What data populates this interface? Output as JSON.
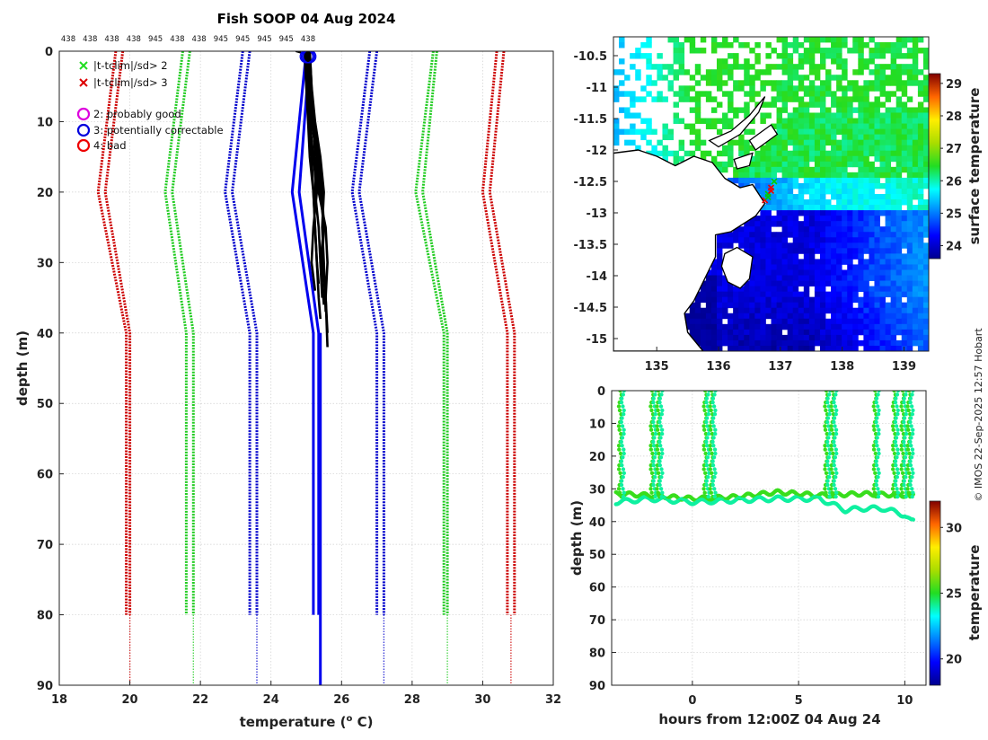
{
  "credit": "© IMOS 22-Sep-2025 12:57 Hobart",
  "chart_data": [
    {
      "type": "line",
      "name": "profile",
      "title": "Fish SOOP 04 Aug 2024",
      "xlabel": "temperature (",
      "xlabel_sup": "o",
      "xlabel_end": " C)",
      "ylabel": "depth (m)",
      "xlim": [
        18,
        32
      ],
      "ylim": [
        0,
        90
      ],
      "xticks": [
        "18",
        "20",
        "22",
        "24",
        "26",
        "28",
        "30",
        "32"
      ],
      "yticks": [
        "0",
        "10",
        "20",
        "30",
        "40",
        "50",
        "60",
        "70",
        "80",
        "90"
      ],
      "sensor_ids": [
        "438",
        "438",
        "438",
        "438",
        "945",
        "438",
        "438",
        "945",
        "945",
        "945",
        "945",
        "438"
      ],
      "legend": [
        {
          "marker": "x",
          "color": "#22dd22",
          "label": "|t-tclim|/sd> 2"
        },
        {
          "marker": "x",
          "color": "#dd0000",
          "label": "|t-tclim|/sd> 3"
        },
        {
          "marker": "o",
          "color": "#dd00dd",
          "label": "2: probably good"
        },
        {
          "marker": "o",
          "color": "#0000dd",
          "label": "3: potentially correctable"
        },
        {
          "marker": "o",
          "color": "#ee0000",
          "label": "4: bad"
        }
      ],
      "climatology": [
        {
          "color": "#cc0000",
          "depth": [
            0,
            20,
            40,
            80
          ],
          "temp": [
            19.6,
            19.1,
            19.9,
            19.9
          ]
        },
        {
          "color": "#cc0000",
          "depth": [
            0,
            20,
            40,
            80
          ],
          "temp": [
            19.8,
            19.3,
            20.0,
            20.0
          ]
        },
        {
          "color": "#cc0000",
          "depth": [
            80,
            90
          ],
          "temp": [
            20.0,
            20.0
          ]
        },
        {
          "color": "#22cc22",
          "depth": [
            0,
            20,
            40,
            80
          ],
          "temp": [
            21.5,
            21.0,
            21.6,
            21.6
          ]
        },
        {
          "color": "#22cc22",
          "depth": [
            0,
            20,
            40,
            80
          ],
          "temp": [
            21.7,
            21.2,
            21.8,
            21.8
          ]
        },
        {
          "color": "#22cc22",
          "depth": [
            80,
            90
          ],
          "temp": [
            21.8,
            21.8
          ]
        },
        {
          "color": "#0000cc",
          "depth": [
            0,
            20,
            40,
            80
          ],
          "temp": [
            23.2,
            22.7,
            23.4,
            23.4
          ]
        },
        {
          "color": "#0000cc",
          "depth": [
            0,
            20,
            40,
            80
          ],
          "temp": [
            23.4,
            22.9,
            23.6,
            23.6
          ]
        },
        {
          "color": "#0000cc",
          "depth": [
            80,
            90
          ],
          "temp": [
            23.6,
            23.6
          ]
        },
        {
          "color": "#0000cc",
          "depth": [
            0,
            20,
            40,
            80
          ],
          "temp": [
            26.8,
            26.3,
            27.0,
            27.0
          ]
        },
        {
          "color": "#0000cc",
          "depth": [
            0,
            20,
            40,
            80
          ],
          "temp": [
            27.0,
            26.5,
            27.2,
            27.2
          ]
        },
        {
          "color": "#0000cc",
          "depth": [
            80,
            90
          ],
          "temp": [
            27.2,
            27.2
          ]
        },
        {
          "color": "#22cc22",
          "depth": [
            0,
            20,
            40,
            80
          ],
          "temp": [
            28.6,
            28.1,
            28.9,
            28.9
          ]
        },
        {
          "color": "#22cc22",
          "depth": [
            0,
            20,
            40,
            80
          ],
          "temp": [
            28.7,
            28.3,
            29.0,
            29.0
          ]
        },
        {
          "color": "#22cc22",
          "depth": [
            80,
            90
          ],
          "temp": [
            29.0,
            29.0
          ]
        },
        {
          "color": "#cc0000",
          "depth": [
            0,
            20,
            40,
            80
          ],
          "temp": [
            30.4,
            30.0,
            30.7,
            30.7
          ]
        },
        {
          "color": "#cc0000",
          "depth": [
            0,
            20,
            40,
            80
          ],
          "temp": [
            30.6,
            30.2,
            30.9,
            30.9
          ]
        },
        {
          "color": "#cc0000",
          "depth": [
            80,
            90
          ],
          "temp": [
            30.8,
            30.8
          ]
        }
      ],
      "mean_profile": [
        {
          "color": "#0000ee",
          "depth": [
            0,
            20,
            40,
            80
          ],
          "temp": [
            25.0,
            24.6,
            25.2,
            25.2
          ]
        },
        {
          "color": "#0000ee",
          "depth": [
            0,
            20,
            40,
            80
          ],
          "temp": [
            25.1,
            24.8,
            25.35,
            25.35
          ]
        },
        {
          "color": "#0000ee",
          "depth": [
            40,
            90
          ],
          "temp": [
            25.4,
            25.4
          ]
        }
      ],
      "profiles": [
        {
          "depth": [
            0,
            5,
            10,
            15,
            20,
            25,
            30,
            35,
            38
          ],
          "temp": [
            25.0,
            25.05,
            25.1,
            25.15,
            25.2,
            25.25,
            25.3,
            25.35,
            25.4
          ]
        },
        {
          "depth": [
            0,
            5,
            10,
            15,
            20,
            25,
            30,
            35,
            40
          ],
          "temp": [
            25.05,
            25.1,
            25.15,
            25.3,
            25.4,
            25.5,
            25.45,
            25.55,
            25.6
          ]
        },
        {
          "depth": [
            0,
            5,
            10,
            15,
            20,
            25,
            30,
            34
          ],
          "temp": [
            25.0,
            25.05,
            25.1,
            25.2,
            25.3,
            25.2,
            25.15,
            25.25
          ]
        },
        {
          "depth": [
            0,
            5,
            10,
            15,
            20,
            25,
            30,
            36
          ],
          "temp": [
            25.1,
            25.15,
            25.2,
            25.35,
            25.45,
            25.5,
            25.4,
            25.5
          ]
        },
        {
          "depth": [
            0,
            5,
            10,
            15,
            20,
            25,
            30,
            35,
            42
          ],
          "temp": [
            25.05,
            25.1,
            25.2,
            25.25,
            25.35,
            25.55,
            25.6,
            25.55,
            25.6
          ]
        },
        {
          "depth": [
            0,
            5,
            10,
            15,
            20,
            25,
            30,
            33
          ],
          "temp": [
            24.95,
            25.0,
            25.05,
            25.1,
            25.2,
            25.25,
            25.3,
            25.35
          ]
        },
        {
          "depth": [
            0,
            5,
            10,
            15,
            20,
            25,
            30,
            37
          ],
          "temp": [
            25.1,
            25.15,
            25.25,
            25.4,
            25.5,
            25.45,
            25.5,
            25.55
          ]
        },
        {
          "depth": [
            0,
            5,
            10,
            15,
            20,
            25,
            30,
            35
          ],
          "temp": [
            25.0,
            25.1,
            25.15,
            25.3,
            25.25,
            25.35,
            25.4,
            25.45
          ]
        }
      ],
      "surface_point": {
        "depth": 0.5,
        "temp": 25.05
      },
      "surface_line": {
        "depth": [
          0,
          0.5
        ],
        "temp": [
          24.7,
          25.05
        ]
      }
    },
    {
      "type": "heatmap",
      "name": "map",
      "xlim": [
        134.3,
        139.4
      ],
      "ylim": [
        -15.2,
        -10.2
      ],
      "xticks": [
        "135",
        "136",
        "137",
        "138",
        "139"
      ],
      "yticks": [
        "-10.5",
        "-11",
        "-11.5",
        "-12",
        "-12.5",
        "-13",
        "-13.5",
        "-14",
        "-14.5",
        "-15"
      ],
      "colorbar_label": "surface temperature",
      "colorbar_ticks": [
        "24",
        "25",
        "26",
        "27",
        "28",
        "29"
      ],
      "colorbar_range": [
        23.6,
        29.3
      ],
      "track": {
        "lon": [
          136.75,
          136.8,
          136.85,
          136.9,
          136.85,
          136.8
        ],
        "lat": [
          -12.8,
          -12.7,
          -12.6,
          -12.5,
          -12.65,
          -12.75
        ]
      }
    },
    {
      "type": "scatter",
      "name": "timeseries",
      "xlabel": "hours from 12:00Z 04 Aug 24",
      "ylabel": "depth (m)",
      "xlim": [
        -3.8,
        11
      ],
      "ylim": [
        0,
        90
      ],
      "xticks": [
        "0",
        "5",
        "10"
      ],
      "yticks": [
        "0",
        "10",
        "20",
        "30",
        "40",
        "50",
        "60",
        "70",
        "80",
        "90"
      ],
      "colorbar_label": "temperature",
      "colorbar_ticks": [
        "20",
        "25",
        "30"
      ],
      "colorbar_range": [
        18,
        32
      ],
      "dives": [
        -3.4,
        -1.9,
        -1.6,
        0.6,
        0.9,
        6.3,
        6.6,
        8.6,
        9.5,
        9.9,
        10.2
      ],
      "baseline_upper": {
        "x": [
          -3.5,
          -2,
          0,
          2,
          4,
          6,
          8,
          10.3
        ],
        "depth": [
          31.5,
          32,
          33,
          32.5,
          31,
          32,
          31.5,
          32
        ]
      },
      "baseline_lower": {
        "x": [
          -3.5,
          -2,
          0,
          2,
          4,
          6,
          7.2,
          8,
          9,
          10,
          10.3
        ],
        "depth": [
          34,
          33,
          34,
          33.5,
          33,
          33,
          36.5,
          36,
          36,
          38,
          40
        ]
      }
    }
  ]
}
